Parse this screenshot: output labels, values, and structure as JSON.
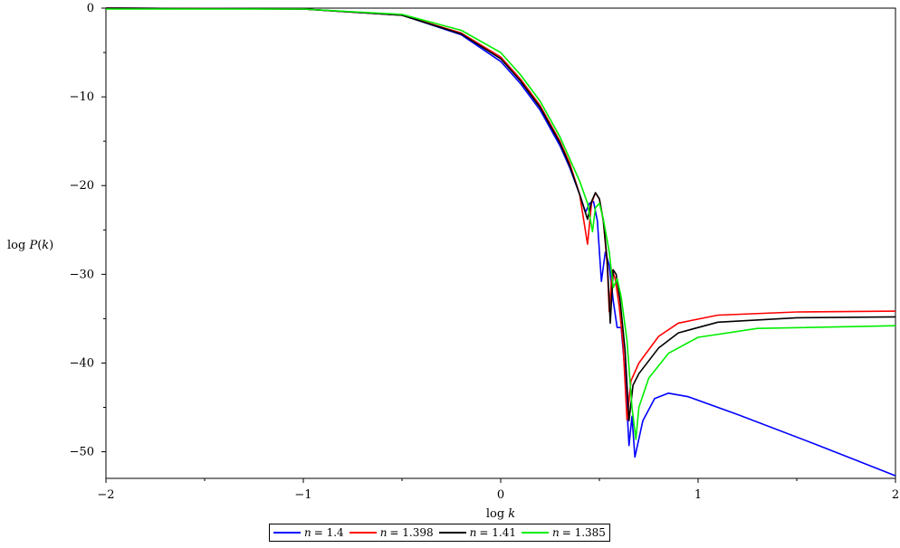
{
  "chart_data": {
    "type": "line",
    "title": "",
    "xlabel": "log k",
    "ylabel": "log P(k)",
    "xlim": [
      -2,
      2
    ],
    "ylim": [
      -53,
      0
    ],
    "xticks": [
      -2,
      -1,
      0,
      1,
      2
    ],
    "xtick_labels": [
      "−2",
      "−1",
      "0",
      "1",
      "2"
    ],
    "yticks": [
      0,
      -10,
      -20,
      -30,
      -40,
      -50
    ],
    "ytick_labels": [
      "0",
      "−10",
      "−20",
      "−30",
      "−40",
      "−50"
    ],
    "grid": false,
    "legend_position": "bottom",
    "series": [
      {
        "name": "n = 1.4",
        "label_var": "n",
        "label_val": "= 1.4",
        "color": "#0000ff",
        "points": [
          [
            -2,
            0
          ],
          [
            -1,
            -0.1
          ],
          [
            -0.5,
            -0.8
          ],
          [
            -0.2,
            -3
          ],
          [
            0,
            -6
          ],
          [
            0.1,
            -8.5
          ],
          [
            0.2,
            -11.5
          ],
          [
            0.3,
            -15.5
          ],
          [
            0.35,
            -18
          ],
          [
            0.4,
            -21
          ],
          [
            0.43,
            -23
          ],
          [
            0.45,
            -22
          ],
          [
            0.47,
            -21.8
          ],
          [
            0.49,
            -24
          ],
          [
            0.51,
            -30.8
          ],
          [
            0.53,
            -27.5
          ],
          [
            0.55,
            -29
          ],
          [
            0.57,
            -33
          ],
          [
            0.59,
            -36
          ],
          [
            0.61,
            -36
          ],
          [
            0.63,
            -41
          ],
          [
            0.65,
            -49.3
          ],
          [
            0.665,
            -46
          ],
          [
            0.68,
            -50.6
          ],
          [
            0.72,
            -46.5
          ],
          [
            0.78,
            -44
          ],
          [
            0.85,
            -43.4
          ],
          [
            0.95,
            -43.8
          ],
          [
            1.2,
            -45.8
          ],
          [
            1.6,
            -49.2
          ],
          [
            2,
            -52.7
          ]
        ]
      },
      {
        "name": "n = 1.398",
        "label_var": "n",
        "label_val": "= 1.398",
        "color": "#ff0000",
        "points": [
          [
            -2,
            0
          ],
          [
            -1,
            -0.1
          ],
          [
            -0.5,
            -0.8
          ],
          [
            -0.2,
            -2.8
          ],
          [
            0,
            -5.5
          ],
          [
            0.1,
            -8
          ],
          [
            0.2,
            -11
          ],
          [
            0.3,
            -15
          ],
          [
            0.35,
            -17.5
          ],
          [
            0.4,
            -21
          ],
          [
            0.44,
            -26.6
          ],
          [
            0.46,
            -22
          ],
          [
            0.48,
            -20.8
          ],
          [
            0.5,
            -21.5
          ],
          [
            0.52,
            -24
          ],
          [
            0.54,
            -29
          ],
          [
            0.55,
            -34.2
          ],
          [
            0.565,
            -29.5
          ],
          [
            0.58,
            -30.5
          ],
          [
            0.6,
            -33.5
          ],
          [
            0.62,
            -38
          ],
          [
            0.64,
            -46.4
          ],
          [
            0.66,
            -42
          ],
          [
            0.7,
            -40
          ],
          [
            0.8,
            -37
          ],
          [
            0.9,
            -35.5
          ],
          [
            1.1,
            -34.6
          ],
          [
            1.5,
            -34.25
          ],
          [
            2,
            -34.15
          ]
        ]
      },
      {
        "name": "n = 1.41",
        "label_var": "n",
        "label_val": "= 1.41",
        "color": "#000000",
        "points": [
          [
            -2,
            0
          ],
          [
            -1,
            -0.1
          ],
          [
            -0.5,
            -0.8
          ],
          [
            -0.2,
            -2.9
          ],
          [
            0,
            -5.7
          ],
          [
            0.1,
            -8.2
          ],
          [
            0.2,
            -11.2
          ],
          [
            0.3,
            -15.2
          ],
          [
            0.35,
            -17.8
          ],
          [
            0.4,
            -21
          ],
          [
            0.44,
            -23.8
          ],
          [
            0.46,
            -21.8
          ],
          [
            0.48,
            -20.8
          ],
          [
            0.5,
            -21.5
          ],
          [
            0.52,
            -24
          ],
          [
            0.54,
            -28.5
          ],
          [
            0.555,
            -35.5
          ],
          [
            0.57,
            -29.5
          ],
          [
            0.585,
            -30
          ],
          [
            0.605,
            -33
          ],
          [
            0.63,
            -38.5
          ],
          [
            0.65,
            -46.5
          ],
          [
            0.67,
            -42.5
          ],
          [
            0.7,
            -41.2
          ],
          [
            0.8,
            -38.3
          ],
          [
            0.9,
            -36.6
          ],
          [
            1.1,
            -35.4
          ],
          [
            1.5,
            -34.9
          ],
          [
            2,
            -34.8
          ]
        ]
      },
      {
        "name": "n = 1.385",
        "label_var": "n",
        "label_val": "= 1.385",
        "color": "#00ee00",
        "points": [
          [
            -2,
            -0.1
          ],
          [
            -1,
            -0.1
          ],
          [
            -0.5,
            -0.7
          ],
          [
            -0.2,
            -2.5
          ],
          [
            0,
            -5
          ],
          [
            0.1,
            -7.5
          ],
          [
            0.2,
            -10.5
          ],
          [
            0.3,
            -14.5
          ],
          [
            0.35,
            -17
          ],
          [
            0.4,
            -19.5
          ],
          [
            0.44,
            -22
          ],
          [
            0.465,
            -25.2
          ],
          [
            0.48,
            -22.5
          ],
          [
            0.5,
            -22
          ],
          [
            0.52,
            -23.8
          ],
          [
            0.55,
            -27.5
          ],
          [
            0.57,
            -31.5
          ],
          [
            0.59,
            -30.5
          ],
          [
            0.61,
            -32.5
          ],
          [
            0.64,
            -37.5
          ],
          [
            0.665,
            -45
          ],
          [
            0.685,
            -48.6
          ],
          [
            0.7,
            -45
          ],
          [
            0.75,
            -41.7
          ],
          [
            0.85,
            -38.9
          ],
          [
            1.0,
            -37.1
          ],
          [
            1.3,
            -36.1
          ],
          [
            2,
            -35.8
          ]
        ]
      }
    ]
  }
}
